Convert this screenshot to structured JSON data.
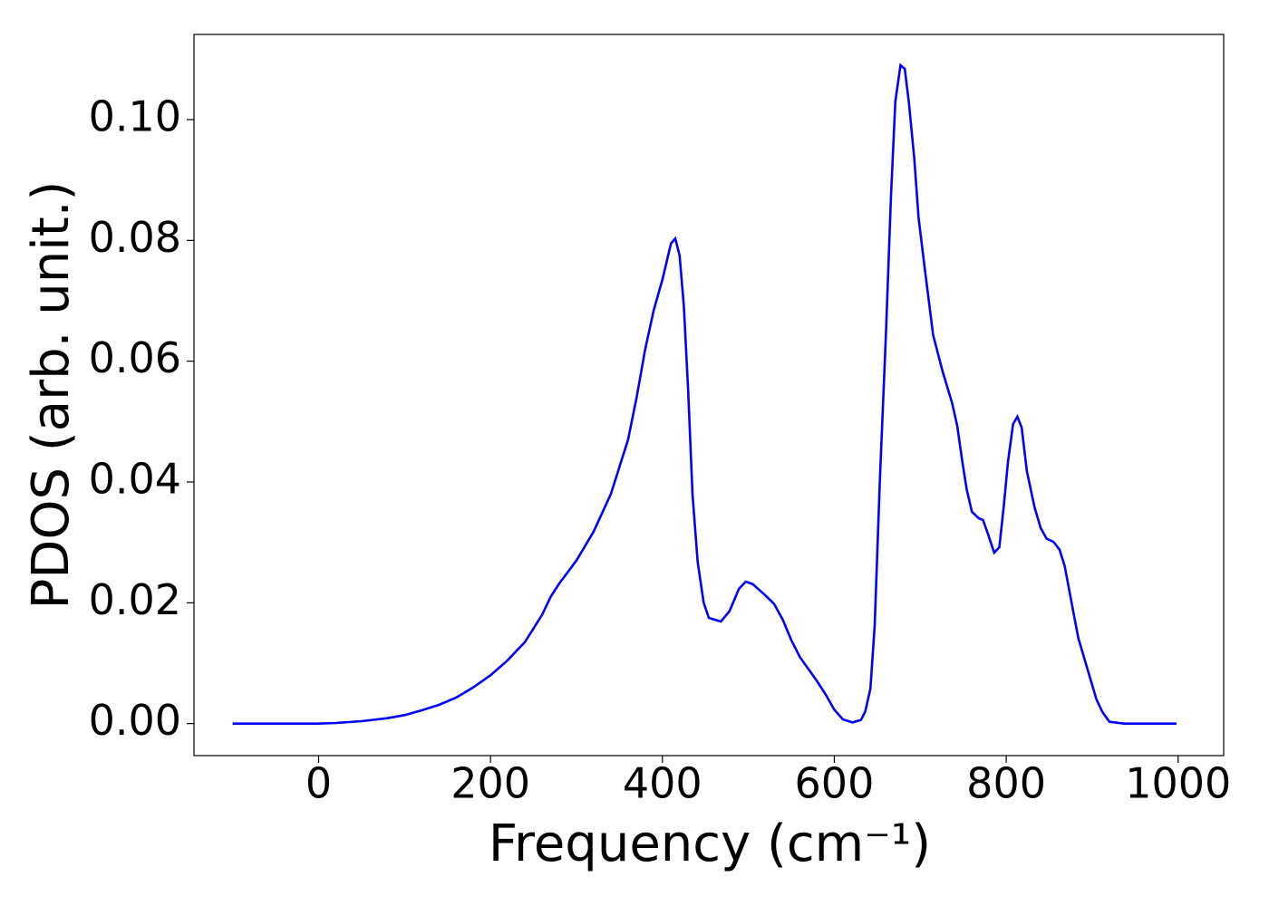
{
  "chart_data": {
    "type": "line",
    "xlabel": "Frequency (cm⁻¹)",
    "ylabel": "PDOS (arb. unit.)",
    "xlim": [
      -145,
      1053
    ],
    "ylim": [
      -0.0053,
      0.1141
    ],
    "xticks": [
      0,
      200,
      400,
      600,
      800,
      1000
    ],
    "yticks": [
      {
        "value": 0,
        "label": "0.00"
      },
      {
        "value": 0.02,
        "label": "0.02"
      },
      {
        "value": 0.04,
        "label": "0.04"
      },
      {
        "value": 0.06,
        "label": "0.06"
      },
      {
        "value": 0.08,
        "label": "0.08"
      },
      {
        "value": 0.1,
        "label": "0.10"
      }
    ],
    "grid": false,
    "series": [
      {
        "name": "PDOS",
        "color": "#0000ff",
        "x": [
          -100,
          0,
          20,
          50,
          80,
          100,
          120,
          140,
          160,
          180,
          200,
          220,
          240,
          260,
          270,
          280,
          300,
          320,
          340,
          360,
          370,
          380,
          390,
          400,
          410,
          415,
          420,
          425,
          430,
          435,
          441,
          448,
          454,
          468,
          478,
          489,
          497,
          505,
          520,
          530,
          540,
          550,
          560,
          570,
          580,
          590,
          600,
          610,
          621,
          631,
          636,
          642,
          647,
          653,
          660,
          666,
          671,
          677,
          682,
          687,
          693,
          698,
          705,
          715,
          726,
          737,
          743,
          749,
          754,
          760,
          768,
          773,
          779,
          786,
          792,
          797,
          802,
          808,
          813,
          818,
          824,
          833,
          840,
          847,
          855,
          862,
          868,
          879,
          884,
          895,
          905,
          912,
          920,
          937,
          998
        ],
        "values": [
          0,
          0,
          0.0001,
          0.0004,
          0.0009,
          0.0014,
          0.0022,
          0.0031,
          0.0043,
          0.006,
          0.008,
          0.0105,
          0.0135,
          0.018,
          0.021,
          0.0232,
          0.027,
          0.0318,
          0.038,
          0.047,
          0.054,
          0.062,
          0.0685,
          0.0735,
          0.0795,
          0.0803,
          0.0775,
          0.069,
          0.055,
          0.038,
          0.0268,
          0.02,
          0.0175,
          0.0169,
          0.0186,
          0.0223,
          0.0235,
          0.0231,
          0.0212,
          0.0198,
          0.0172,
          0.0138,
          0.011,
          0.009,
          0.007,
          0.0048,
          0.0023,
          0.0007,
          0.0002,
          0.0006,
          0.002,
          0.0058,
          0.0163,
          0.0403,
          0.0643,
          0.0876,
          0.103,
          0.109,
          0.1084,
          0.1025,
          0.0936,
          0.0838,
          0.0756,
          0.0643,
          0.0583,
          0.0531,
          0.0493,
          0.0433,
          0.0388,
          0.0351,
          0.034,
          0.0337,
          0.0313,
          0.0283,
          0.0292,
          0.0358,
          0.0433,
          0.0496,
          0.0508,
          0.049,
          0.0418,
          0.0358,
          0.0324,
          0.0306,
          0.0301,
          0.0288,
          0.0261,
          0.0178,
          0.0141,
          0.0088,
          0.004,
          0.0019,
          0.0003,
          0,
          0
        ]
      }
    ]
  }
}
